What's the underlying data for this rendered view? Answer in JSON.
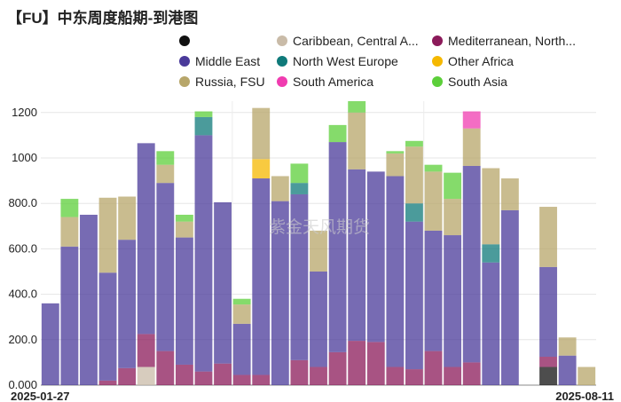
{
  "title": "【FU】中东周度船期-到港图",
  "chart_data": {
    "type": "bar",
    "stacked": true,
    "title": "【FU】中东周度船期-到港图",
    "x_start_label": "2025-01-27",
    "x_end_label": "2025-08-11",
    "ylim": [
      0,
      1250
    ],
    "yticks": [
      0,
      200,
      400,
      600,
      800,
      1000,
      1200
    ],
    "ytick_labels": [
      "0.000",
      "200.0",
      "400.0",
      "600.0",
      "800.0",
      "1000",
      "1200"
    ],
    "watermark": "紫金天风期货",
    "legend_position": "top",
    "series": [
      {
        "name": "",
        "color": "#111111",
        "values": [
          0,
          0,
          0,
          0,
          0,
          0,
          0,
          0,
          0,
          0,
          0,
          0,
          0,
          0,
          0,
          0,
          0,
          0,
          0,
          0,
          0,
          0,
          0,
          0,
          0,
          0,
          80,
          0,
          0
        ]
      },
      {
        "name": "Caribbean, Central A...",
        "color": "#c9bba8",
        "values": [
          0,
          0,
          0,
          0,
          0,
          80,
          0,
          0,
          0,
          0,
          0,
          0,
          0,
          0,
          0,
          0,
          0,
          0,
          0,
          0,
          0,
          0,
          0,
          0,
          0,
          0,
          0,
          0,
          0
        ]
      },
      {
        "name": "Mediterranean, North...",
        "color": "#8b1a5a",
        "values": [
          0,
          0,
          0,
          20,
          75,
          145,
          150,
          90,
          60,
          95,
          45,
          45,
          0,
          110,
          80,
          145,
          195,
          190,
          80,
          70,
          150,
          80,
          100,
          0,
          0,
          0,
          45,
          0,
          0
        ]
      },
      {
        "name": "Middle East",
        "color": "#4a3a9a",
        "values": [
          360,
          610,
          750,
          475,
          565,
          840,
          740,
          560,
          1040,
          710,
          225,
          865,
          810,
          730,
          420,
          925,
          755,
          750,
          840,
          650,
          530,
          580,
          865,
          540,
          770,
          0,
          395,
          130,
          0
        ]
      },
      {
        "name": "North West Europe",
        "color": "#0f7a7a",
        "values": [
          0,
          0,
          0,
          0,
          0,
          0,
          0,
          0,
          80,
          0,
          0,
          0,
          0,
          50,
          0,
          0,
          0,
          0,
          0,
          80,
          0,
          0,
          0,
          80,
          0,
          0,
          0,
          0,
          0
        ]
      },
      {
        "name": "Other Africa",
        "color": "#f5b800",
        "values": [
          0,
          0,
          0,
          0,
          0,
          0,
          0,
          0,
          0,
          0,
          0,
          85,
          0,
          0,
          0,
          0,
          0,
          0,
          0,
          0,
          0,
          0,
          0,
          0,
          0,
          0,
          0,
          0,
          0
        ]
      },
      {
        "name": "Russia, FSU",
        "color": "#b7a66a",
        "values": [
          0,
          130,
          0,
          330,
          190,
          0,
          80,
          70,
          0,
          0,
          85,
          225,
          110,
          0,
          180,
          0,
          250,
          0,
          100,
          250,
          260,
          160,
          165,
          335,
          140,
          0,
          265,
          80,
          80
        ]
      },
      {
        "name": "South America",
        "color": "#f03cb0",
        "values": [
          0,
          0,
          0,
          0,
          0,
          0,
          0,
          0,
          0,
          0,
          0,
          0,
          0,
          0,
          0,
          0,
          0,
          0,
          0,
          0,
          0,
          0,
          75,
          0,
          0,
          0,
          0,
          0,
          0
        ]
      },
      {
        "name": "South Asia",
        "color": "#5ccf3a",
        "values": [
          0,
          80,
          0,
          0,
          0,
          0,
          60,
          30,
          25,
          0,
          25,
          0,
          0,
          85,
          0,
          75,
          50,
          0,
          10,
          25,
          30,
          115,
          0,
          0,
          0,
          0,
          0,
          0,
          0
        ]
      }
    ]
  }
}
